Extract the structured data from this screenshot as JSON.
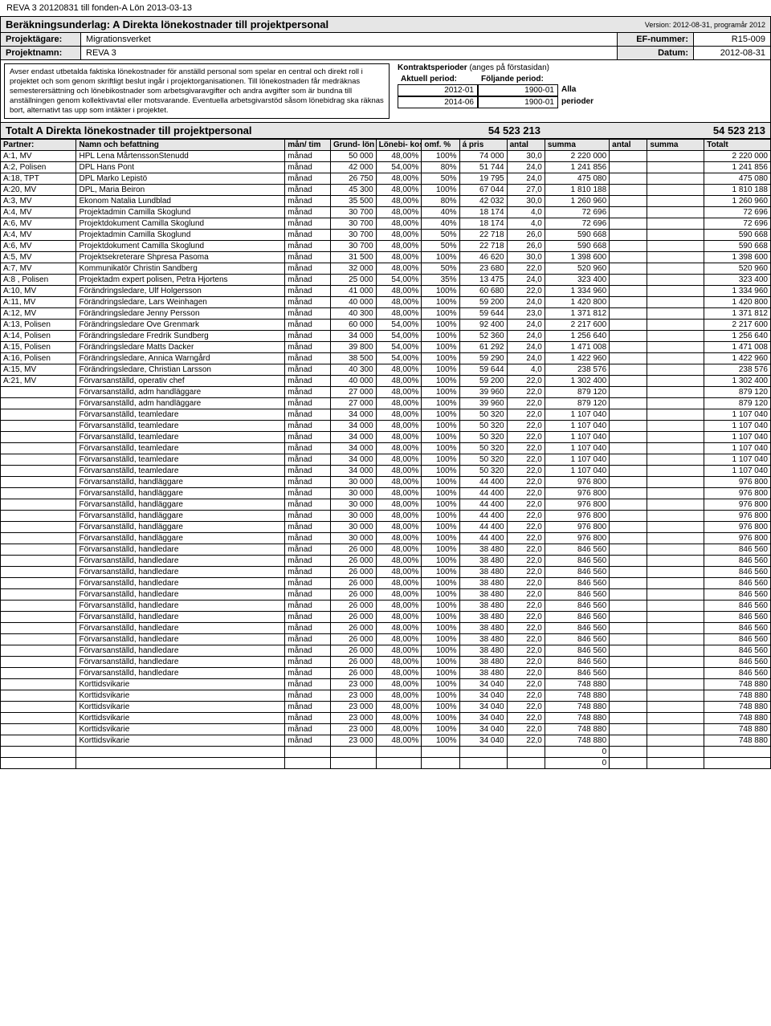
{
  "doc_header": "REVA 3 20120831 till fonden-A Lön 2013-03-13",
  "title": "Beräkningsunderlag: A Direkta lönekostnader till projektpersonal",
  "version": "Version: 2012-08-31, programår 2012",
  "meta": {
    "owner_label": "Projektägare:",
    "owner_value": "Migrationsverket",
    "ef_label": "EF-nummer:",
    "ef_value": "R15-009",
    "name_label": "Projektnamn:",
    "name_value": "REVA 3",
    "date_label": "Datum:",
    "date_value": "2012-08-31"
  },
  "info_text": "Avser endast utbetalda faktiska lönekostnader för anställd personal som spelar en central och direkt roll i projektet och som genom skriftligt beslut ingår i projektorganisationen. Till lönekostnaden får medräknas semesterersättning och lönebikostnader som arbetsgivaravgifter och andra avgifter som är bundna till anställningen genom kollektivavtal eller motsvarande. Eventuella arbetsgivarstöd såsom lönebidrag ska räknas bort, alternativt tas upp som intäkter i projektet.",
  "periods": {
    "title": "Kontraktsperioder",
    "title_sub": "(anges på förstasidan)",
    "aktuell_label": "Aktuell period:",
    "foljande_label": "Följande period:",
    "aktuell_from": "2012-01",
    "aktuell_to": "2014-06",
    "foljande_from": "1900-01",
    "foljande_to": "1900-01",
    "alla": "Alla",
    "perioder": "perioder"
  },
  "totals": {
    "label": "Totalt A Direkta lönekostnader till projektpersonal",
    "sum1": "54 523 213",
    "sum2": "",
    "sum3": "54 523 213"
  },
  "columns": [
    "Partner:",
    "Namn och befattning",
    "mån/ tim",
    "Grund- lön",
    "Lönebi- kost. %",
    "omf. %",
    "á pris",
    "antal",
    "summa",
    "antal",
    "summa",
    "Totalt"
  ],
  "rows": [
    [
      "A:1, MV",
      "HPL Lena MårtenssonStenudd",
      "månad",
      "50 000",
      "48,00%",
      "100%",
      "74 000",
      "30,0",
      "2 220 000",
      "",
      "",
      "2 220 000"
    ],
    [
      "A:2, Polisen",
      "DPL Hans Pont",
      "månad",
      "42 000",
      "54,00%",
      "80%",
      "51 744",
      "24,0",
      "1 241 856",
      "",
      "",
      "1 241 856"
    ],
    [
      "A:18, TPT",
      "DPL Marko Lepistö",
      "månad",
      "26 750",
      "48,00%",
      "50%",
      "19 795",
      "24,0",
      "475 080",
      "",
      "",
      "475 080"
    ],
    [
      "A:20, MV",
      "DPL, Maria Beiron",
      "månad",
      "45 300",
      "48,00%",
      "100%",
      "67 044",
      "27,0",
      "1 810 188",
      "",
      "",
      "1 810 188"
    ],
    [
      "A:3, MV",
      "Ekonom Natalia Lundblad",
      "månad",
      "35 500",
      "48,00%",
      "80%",
      "42 032",
      "30,0",
      "1 260 960",
      "",
      "",
      "1 260 960"
    ],
    [
      "A:4, MV",
      "Projektadmin Camilla Skoglund",
      "månad",
      "30 700",
      "48,00%",
      "40%",
      "18 174",
      "4,0",
      "72 696",
      "",
      "",
      "72 696"
    ],
    [
      "A:6, MV",
      "Projektdokument Camilla Skoglund",
      "månad",
      "30 700",
      "48,00%",
      "40%",
      "18 174",
      "4,0",
      "72 696",
      "",
      "",
      "72 696"
    ],
    [
      "A:4, MV",
      "Projektadmin Camilla Skoglund",
      "månad",
      "30 700",
      "48,00%",
      "50%",
      "22 718",
      "26,0",
      "590 668",
      "",
      "",
      "590 668"
    ],
    [
      "A:6, MV",
      "Projektdokument Camilla Skoglund",
      "månad",
      "30 700",
      "48,00%",
      "50%",
      "22 718",
      "26,0",
      "590 668",
      "",
      "",
      "590 668"
    ],
    [
      "A:5, MV",
      "Projektsekreterare Shpresa Pasoma",
      "månad",
      "31 500",
      "48,00%",
      "100%",
      "46 620",
      "30,0",
      "1 398 600",
      "",
      "",
      "1 398 600"
    ],
    [
      "A:7, MV",
      "Kommunikatör Christin Sandberg",
      "månad",
      "32 000",
      "48,00%",
      "50%",
      "23 680",
      "22,0",
      "520 960",
      "",
      "",
      "520 960"
    ],
    [
      "A:8 , Polisen",
      "Projektadm expert polisen, Petra Hjortens",
      "månad",
      "25 000",
      "54,00%",
      "35%",
      "13 475",
      "24,0",
      "323 400",
      "",
      "",
      "323 400"
    ],
    [
      "A:10, MV",
      "Förändringsledare, Ulf Holgersson",
      "månad",
      "41 000",
      "48,00%",
      "100%",
      "60 680",
      "22,0",
      "1 334 960",
      "",
      "",
      "1 334 960"
    ],
    [
      "A:11, MV",
      "Förändringsledare, Lars Weinhagen",
      "månad",
      "40 000",
      "48,00%",
      "100%",
      "59 200",
      "24,0",
      "1 420 800",
      "",
      "",
      "1 420 800"
    ],
    [
      "A:12, MV",
      "Förändringsledare Jenny Persson",
      "månad",
      "40 300",
      "48,00%",
      "100%",
      "59 644",
      "23,0",
      "1 371 812",
      "",
      "",
      "1 371 812"
    ],
    [
      "A:13, Polisen",
      "Förändringsledare Ove Grenmark",
      "månad",
      "60 000",
      "54,00%",
      "100%",
      "92 400",
      "24,0",
      "2 217 600",
      "",
      "",
      "2 217 600"
    ],
    [
      "A:14, Polisen",
      "Förändringsledare Fredrik Sundberg",
      "månad",
      "34 000",
      "54,00%",
      "100%",
      "52 360",
      "24,0",
      "1 256 640",
      "",
      "",
      "1 256 640"
    ],
    [
      "A:15, Polisen",
      "Förändringsledare Matts Dacker",
      "månad",
      "39 800",
      "54,00%",
      "100%",
      "61 292",
      "24,0",
      "1 471 008",
      "",
      "",
      "1 471 008"
    ],
    [
      "A:16, Polisen",
      "Förändringsledare, Annica Warngård",
      "månad",
      "38 500",
      "54,00%",
      "100%",
      "59 290",
      "24,0",
      "1 422 960",
      "",
      "",
      "1 422 960"
    ],
    [
      "A:15, MV",
      "Förändringsledare, Christian Larsson",
      "månad",
      "40 300",
      "48,00%",
      "100%",
      "59 644",
      "4,0",
      "238 576",
      "",
      "",
      "238 576"
    ],
    [
      "A:21, MV",
      "Förvarsanställd, operativ chef",
      "månad",
      "40 000",
      "48,00%",
      "100%",
      "59 200",
      "22,0",
      "1 302 400",
      "",
      "",
      "1 302 400"
    ],
    [
      "",
      "Förvarsanställd, adm handläggare",
      "månad",
      "27 000",
      "48,00%",
      "100%",
      "39 960",
      "22,0",
      "879 120",
      "",
      "",
      "879 120"
    ],
    [
      "",
      "Förvarsanställd, adm handläggare",
      "månad",
      "27 000",
      "48,00%",
      "100%",
      "39 960",
      "22,0",
      "879 120",
      "",
      "",
      "879 120"
    ],
    [
      "",
      "Förvarsanställd, teamledare",
      "månad",
      "34 000",
      "48,00%",
      "100%",
      "50 320",
      "22,0",
      "1 107 040",
      "",
      "",
      "1 107 040"
    ],
    [
      "",
      "Förvarsanställd, teamledare",
      "månad",
      "34 000",
      "48,00%",
      "100%",
      "50 320",
      "22,0",
      "1 107 040",
      "",
      "",
      "1 107 040"
    ],
    [
      "",
      "Förvarsanställd, teamledare",
      "månad",
      "34 000",
      "48,00%",
      "100%",
      "50 320",
      "22,0",
      "1 107 040",
      "",
      "",
      "1 107 040"
    ],
    [
      "",
      "Förvarsanställd, teamledare",
      "månad",
      "34 000",
      "48,00%",
      "100%",
      "50 320",
      "22,0",
      "1 107 040",
      "",
      "",
      "1 107 040"
    ],
    [
      "",
      "Förvarsanställd, teamledare",
      "månad",
      "34 000",
      "48,00%",
      "100%",
      "50 320",
      "22,0",
      "1 107 040",
      "",
      "",
      "1 107 040"
    ],
    [
      "",
      "Förvarsanställd, teamledare",
      "månad",
      "34 000",
      "48,00%",
      "100%",
      "50 320",
      "22,0",
      "1 107 040",
      "",
      "",
      "1 107 040"
    ],
    [
      "",
      "Förvarsanställd, handläggare",
      "månad",
      "30 000",
      "48,00%",
      "100%",
      "44 400",
      "22,0",
      "976 800",
      "",
      "",
      "976 800"
    ],
    [
      "",
      "Förvarsanställd, handläggare",
      "månad",
      "30 000",
      "48,00%",
      "100%",
      "44 400",
      "22,0",
      "976 800",
      "",
      "",
      "976 800"
    ],
    [
      "",
      "Förvarsanställd, handläggare",
      "månad",
      "30 000",
      "48,00%",
      "100%",
      "44 400",
      "22,0",
      "976 800",
      "",
      "",
      "976 800"
    ],
    [
      "",
      "Förvarsanställd, handläggare",
      "månad",
      "30 000",
      "48,00%",
      "100%",
      "44 400",
      "22,0",
      "976 800",
      "",
      "",
      "976 800"
    ],
    [
      "",
      "Förvarsanställd, handläggare",
      "månad",
      "30 000",
      "48,00%",
      "100%",
      "44 400",
      "22,0",
      "976 800",
      "",
      "",
      "976 800"
    ],
    [
      "",
      "Förvarsanställd, handläggare",
      "månad",
      "30 000",
      "48,00%",
      "100%",
      "44 400",
      "22,0",
      "976 800",
      "",
      "",
      "976 800"
    ],
    [
      "",
      "Förvarsanställd, handledare",
      "månad",
      "26 000",
      "48,00%",
      "100%",
      "38 480",
      "22,0",
      "846 560",
      "",
      "",
      "846 560"
    ],
    [
      "",
      "Förvarsanställd, handledare",
      "månad",
      "26 000",
      "48,00%",
      "100%",
      "38 480",
      "22,0",
      "846 560",
      "",
      "",
      "846 560"
    ],
    [
      "",
      "Förvarsanställd, handledare",
      "månad",
      "26 000",
      "48,00%",
      "100%",
      "38 480",
      "22,0",
      "846 560",
      "",
      "",
      "846 560"
    ],
    [
      "",
      "Förvarsanställd, handledare",
      "månad",
      "26 000",
      "48,00%",
      "100%",
      "38 480",
      "22,0",
      "846 560",
      "",
      "",
      "846 560"
    ],
    [
      "",
      "Förvarsanställd, handledare",
      "månad",
      "26 000",
      "48,00%",
      "100%",
      "38 480",
      "22,0",
      "846 560",
      "",
      "",
      "846 560"
    ],
    [
      "",
      "Förvarsanställd, handledare",
      "månad",
      "26 000",
      "48,00%",
      "100%",
      "38 480",
      "22,0",
      "846 560",
      "",
      "",
      "846 560"
    ],
    [
      "",
      "Förvarsanställd, handledare",
      "månad",
      "26 000",
      "48,00%",
      "100%",
      "38 480",
      "22,0",
      "846 560",
      "",
      "",
      "846 560"
    ],
    [
      "",
      "Förvarsanställd, handledare",
      "månad",
      "26 000",
      "48,00%",
      "100%",
      "38 480",
      "22,0",
      "846 560",
      "",
      "",
      "846 560"
    ],
    [
      "",
      "Förvarsanställd, handledare",
      "månad",
      "26 000",
      "48,00%",
      "100%",
      "38 480",
      "22,0",
      "846 560",
      "",
      "",
      "846 560"
    ],
    [
      "",
      "Förvarsanställd, handledare",
      "månad",
      "26 000",
      "48,00%",
      "100%",
      "38 480",
      "22,0",
      "846 560",
      "",
      "",
      "846 560"
    ],
    [
      "",
      "Förvarsanställd, handledare",
      "månad",
      "26 000",
      "48,00%",
      "100%",
      "38 480",
      "22,0",
      "846 560",
      "",
      "",
      "846 560"
    ],
    [
      "",
      "Förvarsanställd, handledare",
      "månad",
      "26 000",
      "48,00%",
      "100%",
      "38 480",
      "22,0",
      "846 560",
      "",
      "",
      "846 560"
    ],
    [
      "",
      "Korttidsvikarie",
      "månad",
      "23 000",
      "48,00%",
      "100%",
      "34 040",
      "22,0",
      "748 880",
      "",
      "",
      "748 880"
    ],
    [
      "",
      "Korttidsvikarie",
      "månad",
      "23 000",
      "48,00%",
      "100%",
      "34 040",
      "22,0",
      "748 880",
      "",
      "",
      "748 880"
    ],
    [
      "",
      "Korttidsvikarie",
      "månad",
      "23 000",
      "48,00%",
      "100%",
      "34 040",
      "22,0",
      "748 880",
      "",
      "",
      "748 880"
    ],
    [
      "",
      "Korttidsvikarie",
      "månad",
      "23 000",
      "48,00%",
      "100%",
      "34 040",
      "22,0",
      "748 880",
      "",
      "",
      "748 880"
    ],
    [
      "",
      "Korttidsvikarie",
      "månad",
      "23 000",
      "48,00%",
      "100%",
      "34 040",
      "22,0",
      "748 880",
      "",
      "",
      "748 880"
    ],
    [
      "",
      "Korttidsvikarie",
      "månad",
      "23 000",
      "48,00%",
      "100%",
      "34 040",
      "22,0",
      "748 880",
      "",
      "",
      "748 880"
    ]
  ],
  "zeros": [
    "0",
    "0"
  ],
  "colors": {
    "header_bg": "#e6e6e6",
    "border": "#000000",
    "bg": "#ffffff"
  }
}
